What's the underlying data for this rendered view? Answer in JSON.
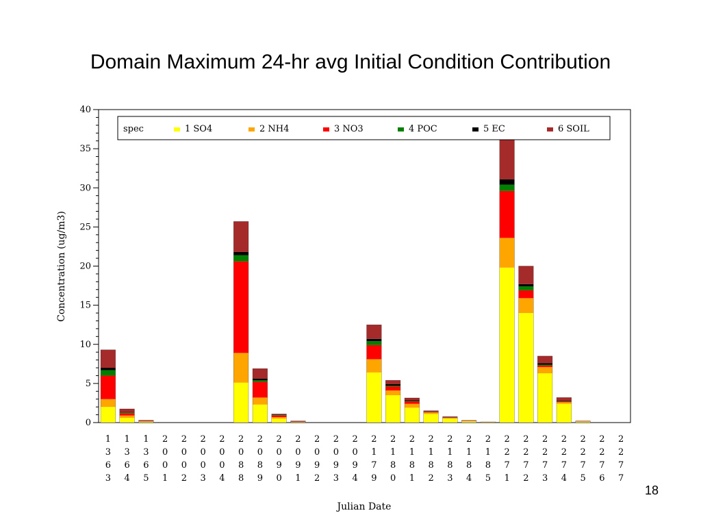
{
  "slide": {
    "title": "Domain Maximum 24-hr avg Initial Condition Contribution",
    "page_number": "18"
  },
  "chart_data": {
    "type": "bar",
    "stacked": true,
    "title": "",
    "xlabel": "Julian Date",
    "ylabel": "Concentration (ug/m3)",
    "ylim": [
      0,
      40
    ],
    "yticks": [
      0,
      5,
      10,
      15,
      20,
      25,
      30,
      35,
      40
    ],
    "grid": false,
    "legend_title": "spec",
    "legend_placement": "top",
    "categories": [
      "1363",
      "1364",
      "1365",
      "2001",
      "2002",
      "2003",
      "2004",
      "2088",
      "2089",
      "2090",
      "2091",
      "2092",
      "2093",
      "2094",
      "2179",
      "2180",
      "2181",
      "2182",
      "2183",
      "2184",
      "2185",
      "2271",
      "2272",
      "2273",
      "2274",
      "2275",
      "2276",
      "2277"
    ],
    "series": [
      {
        "name": "1 SO4",
        "color": "#ffff00",
        "values": [
          2.0,
          0.6,
          0.1,
          0,
          0,
          0,
          0,
          5.1,
          2.3,
          0.5,
          0.05,
          0,
          0,
          0,
          6.4,
          3.5,
          1.9,
          1.1,
          0.5,
          0.15,
          0.05,
          19.8,
          14.0,
          6.3,
          2.4,
          0.1,
          0,
          0
        ]
      },
      {
        "name": "2 NH4",
        "color": "#ffa500",
        "values": [
          1.0,
          0.3,
          0.05,
          0,
          0,
          0,
          0,
          3.8,
          0.9,
          0.2,
          0.02,
          0,
          0,
          0,
          1.7,
          0.6,
          0.5,
          0.2,
          0.1,
          0.05,
          0.01,
          3.8,
          1.9,
          0.8,
          0.2,
          0.05,
          0,
          0
        ]
      },
      {
        "name": "3 NO3",
        "color": "#ff0000",
        "values": [
          3.0,
          0.3,
          0.03,
          0,
          0,
          0,
          0,
          11.7,
          2.0,
          0.2,
          0.02,
          0,
          0,
          0,
          1.8,
          0.5,
          0.3,
          0.05,
          0.03,
          0.02,
          0.01,
          6.0,
          1.0,
          0.2,
          0.1,
          0.01,
          0,
          0
        ]
      },
      {
        "name": "4 POC",
        "color": "#008000",
        "values": [
          0.7,
          0.1,
          0.01,
          0,
          0,
          0,
          0,
          0.8,
          0.2,
          0.05,
          0.01,
          0,
          0,
          0,
          0.5,
          0.1,
          0.05,
          0.02,
          0.01,
          0.01,
          0,
          0.8,
          0.5,
          0.1,
          0.05,
          0,
          0,
          0
        ]
      },
      {
        "name": "5 EC",
        "color": "#000000",
        "values": [
          0.3,
          0.05,
          0.01,
          0,
          0,
          0,
          0,
          0.4,
          0.2,
          0.05,
          0.01,
          0,
          0,
          0,
          0.3,
          0.2,
          0.1,
          0.05,
          0.02,
          0,
          0,
          0.7,
          0.3,
          0.2,
          0.05,
          0,
          0,
          0
        ]
      },
      {
        "name": "6 SOIL",
        "color": "#a52a2a",
        "values": [
          2.3,
          0.4,
          0.1,
          0,
          0,
          0,
          0,
          3.9,
          1.3,
          0.1,
          0.1,
          0,
          0,
          0,
          1.8,
          0.5,
          0.3,
          0.1,
          0.1,
          0.05,
          0.02,
          5.1,
          2.3,
          0.9,
          0.4,
          0.05,
          0,
          0
        ]
      }
    ]
  }
}
